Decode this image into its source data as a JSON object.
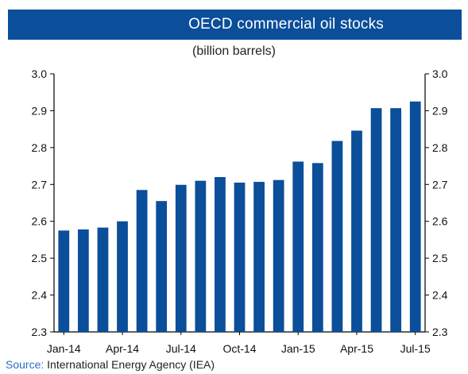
{
  "title": "OECD commercial oil stocks",
  "subtitle": "(billion barrels)",
  "source": {
    "label": "Source:",
    "text": "International Energy Agency (IEA)"
  },
  "colors": {
    "title_bar": "#0b4e9a",
    "bar": "#0b4e9a",
    "source_label": "#2a6fbf"
  },
  "chart_data": {
    "type": "bar",
    "title": "OECD commercial oil stocks",
    "subtitle": "(billion barrels)",
    "xlabel": "",
    "ylabel": "",
    "ylim": [
      2.3,
      3.0
    ],
    "yticks": [
      "2.3",
      "2.4",
      "2.5",
      "2.6",
      "2.7",
      "2.8",
      "2.9",
      "3.0"
    ],
    "y_axis_sides": "both",
    "grid": false,
    "categories": [
      "Jan-14",
      "Feb-14",
      "Mar-14",
      "Apr-14",
      "May-14",
      "Jun-14",
      "Jul-14",
      "Aug-14",
      "Sep-14",
      "Oct-14",
      "Nov-14",
      "Dec-14",
      "Jan-15",
      "Feb-15",
      "Mar-15",
      "Apr-15",
      "May-15",
      "Jun-15",
      "Jul-15"
    ],
    "x_tick_labels": [
      "Jan-14",
      "Apr-14",
      "Jul-14",
      "Oct-14",
      "Jan-15",
      "Apr-15",
      "Jul-15"
    ],
    "values": [
      2.575,
      2.578,
      2.583,
      2.6,
      2.685,
      2.655,
      2.699,
      2.71,
      2.72,
      2.705,
      2.707,
      2.712,
      2.762,
      2.758,
      2.818,
      2.846,
      2.907,
      2.907,
      2.925
    ]
  }
}
